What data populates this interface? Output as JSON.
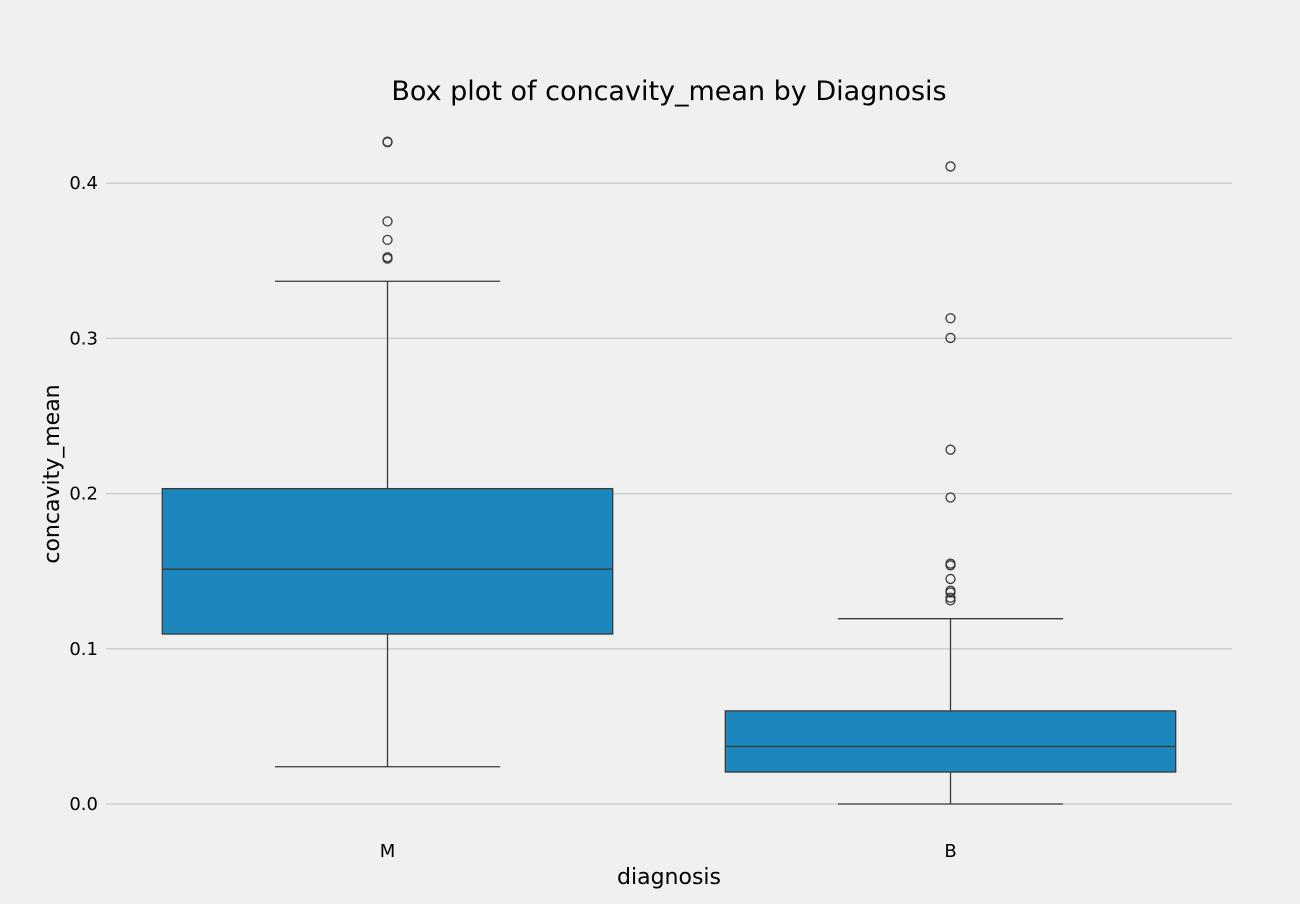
{
  "chart_data": {
    "type": "box",
    "title": "Box plot of concavity_mean by Diagnosis",
    "xlabel": "diagnosis",
    "ylabel": "concavity_mean",
    "categories": [
      "M",
      "B"
    ],
    "ylim": [
      -0.0155,
      0.4425
    ],
    "yticks": [
      0.0,
      0.1,
      0.2,
      0.3,
      0.4
    ],
    "ytick_labels": [
      "0.0",
      "0.1",
      "0.2",
      "0.3",
      "0.4"
    ],
    "grid": "horizontal",
    "colors": {
      "box_fill": "#1c87bc",
      "line": "#3a3a3a",
      "grid": "#cbcbcb",
      "background": "#f0f0f0"
    },
    "boxes": [
      {
        "category": "M",
        "whisker_low": 0.024,
        "q1": 0.1095,
        "median": 0.1513,
        "q3": 0.2032,
        "whisker_high": 0.3368,
        "outliers": [
          0.3514,
          0.3523,
          0.3635,
          0.3754,
          0.4264,
          0.4268
        ]
      },
      {
        "category": "B",
        "whisker_low": 0.0,
        "q1": 0.0206,
        "median": 0.0371,
        "q3": 0.06,
        "whisker_high": 0.1194,
        "outliers": [
          0.1312,
          0.1329,
          0.1363,
          0.1375,
          0.145,
          0.1538,
          0.1549,
          0.1975,
          0.2283,
          0.3003,
          0.313,
          0.4108
        ]
      }
    ]
  }
}
